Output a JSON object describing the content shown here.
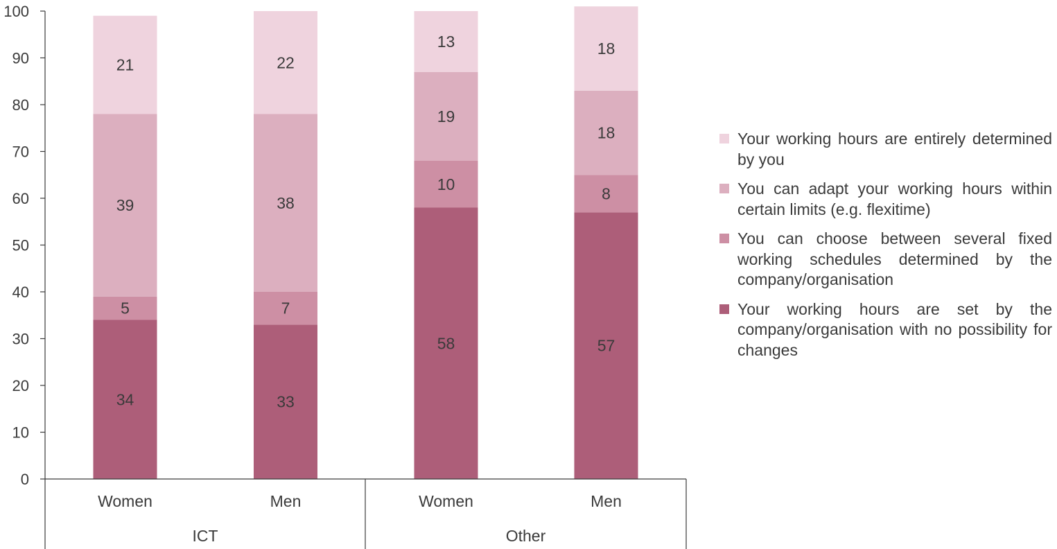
{
  "chart_data": {
    "type": "bar",
    "stacked": true,
    "ylim": [
      0,
      100
    ],
    "yticks": [
      0,
      10,
      20,
      30,
      40,
      50,
      60,
      70,
      80,
      90,
      100
    ],
    "groups": [
      {
        "label": "ICT",
        "categories": [
          "Women",
          "Men"
        ]
      },
      {
        "label": "Other",
        "categories": [
          "Women",
          "Men"
        ]
      }
    ],
    "categories": [
      "Women",
      "Men",
      "Women",
      "Men"
    ],
    "series": [
      {
        "name": "Your working hours are set by the company/organisation with no possibility for changes",
        "color": "#ad5e79",
        "values": [
          34,
          33,
          58,
          57
        ]
      },
      {
        "name": "You can choose between several fixed working schedules determined by the company/organisation",
        "color": "#cd8fa4",
        "values": [
          5,
          7,
          10,
          8
        ]
      },
      {
        "name": "You can adapt your working hours within certain limits (e.g. flexitime)",
        "color": "#dcafbf",
        "values": [
          39,
          38,
          19,
          18
        ]
      },
      {
        "name": "Your working hours are entirely determined by you",
        "color": "#efd3de",
        "values": [
          21,
          22,
          13,
          18
        ]
      }
    ],
    "legend_position": "right",
    "grid": false
  }
}
